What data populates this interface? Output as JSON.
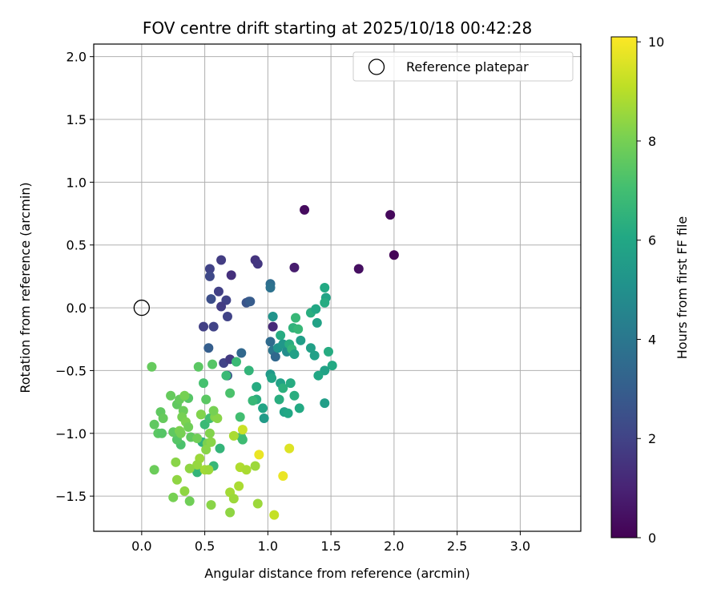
{
  "chart_data": {
    "type": "scatter",
    "title": "FOV centre drift starting at 2025/10/18 00:42:28",
    "xlabel": "Angular distance from reference (arcmin)",
    "ylabel": "Rotation from reference (arcmin)",
    "xlim": [
      -0.38,
      3.48
    ],
    "ylim": [
      -1.78,
      2.1
    ],
    "xticks": [
      0.0,
      0.5,
      1.0,
      1.5,
      2.0,
      2.5,
      3.0
    ],
    "xtick_labels": [
      "0.0",
      "0.5",
      "1.0",
      "1.5",
      "2.0",
      "2.5",
      "3.0"
    ],
    "yticks": [
      -1.5,
      -1.0,
      -0.5,
      0.0,
      0.5,
      1.0,
      1.5,
      2.0
    ],
    "ytick_labels": [
      "−1.5",
      "−1.0",
      "−0.5",
      "0.0",
      "0.5",
      "1.0",
      "1.5",
      "2.0"
    ],
    "grid": true,
    "legend": {
      "position": "top-right",
      "label": "Reference platepar"
    },
    "reference_point": {
      "x": 0.0,
      "y": 0.0
    },
    "colorbar": {
      "label": "Hours from first FF file",
      "range": [
        0,
        10.1
      ],
      "ticks": [
        0,
        2,
        4,
        6,
        8,
        10
      ],
      "tick_labels": [
        "0",
        "2",
        "4",
        "6",
        "8",
        "10"
      ],
      "colormap": "viridis"
    },
    "points": [
      [
        1.29,
        0.78,
        0.3
      ],
      [
        1.97,
        0.74,
        0.2
      ],
      [
        2.0,
        0.42,
        0.1
      ],
      [
        1.72,
        0.31,
        0.4
      ],
      [
        1.21,
        0.32,
        0.8
      ],
      [
        0.9,
        0.38,
        1.5
      ],
      [
        0.92,
        0.35,
        1.6
      ],
      [
        0.63,
        0.38,
        1.8
      ],
      [
        0.54,
        0.31,
        2.0
      ],
      [
        0.54,
        0.25,
        2.2
      ],
      [
        0.71,
        0.26,
        1.4
      ],
      [
        0.61,
        0.13,
        1.9
      ],
      [
        0.55,
        0.07,
        2.4
      ],
      [
        0.67,
        0.06,
        2.0
      ],
      [
        0.83,
        0.04,
        2.6
      ],
      [
        0.85,
        0.05,
        2.7
      ],
      [
        0.86,
        0.05,
        2.9
      ],
      [
        0.63,
        0.01,
        1.8
      ],
      [
        0.68,
        -0.07,
        2.0
      ],
      [
        0.49,
        -0.15,
        1.9
      ],
      [
        0.57,
        -0.15,
        2.0
      ],
      [
        0.53,
        -0.32,
        3.0
      ],
      [
        0.79,
        -0.36,
        3.4
      ],
      [
        0.65,
        -0.44,
        2.0
      ],
      [
        0.7,
        -0.41,
        1.7
      ],
      [
        0.68,
        -0.54,
        2.6
      ],
      [
        1.02,
        0.19,
        3.6
      ],
      [
        1.02,
        0.16,
        3.8
      ],
      [
        1.04,
        -0.07,
        5.2
      ],
      [
        1.04,
        -0.15,
        1.2
      ],
      [
        1.02,
        -0.27,
        3.5
      ],
      [
        1.04,
        -0.34,
        3.9
      ],
      [
        1.06,
        -0.39,
        3.4
      ],
      [
        1.08,
        -0.32,
        5.2
      ],
      [
        1.1,
        -0.22,
        6.2
      ],
      [
        1.12,
        -0.29,
        5.3
      ],
      [
        1.15,
        -0.35,
        4.9
      ],
      [
        1.17,
        -0.29,
        6.3
      ],
      [
        1.19,
        -0.33,
        6.6
      ],
      [
        1.21,
        -0.37,
        5.7
      ],
      [
        1.22,
        -0.08,
        6.7
      ],
      [
        1.2,
        -0.16,
        6.5
      ],
      [
        1.24,
        -0.17,
        6.7
      ],
      [
        1.26,
        -0.26,
        5.6
      ],
      [
        1.34,
        -0.32,
        5.7
      ],
      [
        1.37,
        -0.38,
        5.7
      ],
      [
        1.34,
        -0.04,
        6.3
      ],
      [
        1.38,
        -0.01,
        6.0
      ],
      [
        1.39,
        -0.12,
        5.8
      ],
      [
        1.45,
        0.16,
        6.1
      ],
      [
        1.46,
        0.08,
        5.9
      ],
      [
        1.45,
        0.04,
        6.2
      ],
      [
        1.48,
        -0.35,
        6.2
      ],
      [
        1.51,
        -0.46,
        6.1
      ],
      [
        1.45,
        -0.5,
        5.8
      ],
      [
        1.4,
        -0.54,
        6.0
      ],
      [
        1.45,
        -0.76,
        5.6
      ],
      [
        1.25,
        -0.8,
        6.1
      ],
      [
        1.13,
        -0.83,
        5.8
      ],
      [
        1.16,
        -0.84,
        6.0
      ],
      [
        1.1,
        -0.6,
        5.8
      ],
      [
        1.12,
        -0.64,
        6.4
      ],
      [
        1.18,
        -0.6,
        6.2
      ],
      [
        1.21,
        -0.7,
        6.3
      ],
      [
        1.09,
        -0.73,
        6.3
      ],
      [
        1.02,
        -0.53,
        5.4
      ],
      [
        1.03,
        -0.56,
        5.9
      ],
      [
        0.96,
        -0.8,
        5.9
      ],
      [
        0.97,
        -0.88,
        5.5
      ],
      [
        0.91,
        -0.73,
        6.3
      ],
      [
        0.88,
        -0.74,
        6.7
      ],
      [
        0.91,
        -0.63,
        6.2
      ],
      [
        0.85,
        -0.5,
        6.6
      ],
      [
        0.75,
        -0.43,
        6.8
      ],
      [
        0.67,
        -0.54,
        6.8
      ],
      [
        0.7,
        -0.68,
        7.2
      ],
      [
        0.78,
        -0.87,
        7.0
      ],
      [
        0.79,
        -1.03,
        7.3
      ],
      [
        0.8,
        -1.05,
        6.9
      ],
      [
        0.62,
        -1.12,
        6.6
      ],
      [
        0.57,
        -1.26,
        6.7
      ],
      [
        0.44,
        -1.31,
        6.6
      ],
      [
        0.48,
        -1.07,
        6.5
      ],
      [
        0.5,
        -0.93,
        6.8
      ],
      [
        0.54,
        -0.88,
        7.0
      ],
      [
        0.47,
        -0.85,
        7.1
      ],
      [
        0.49,
        -0.6,
        7.1
      ],
      [
        0.56,
        -0.45,
        7.4
      ],
      [
        0.45,
        -0.47,
        7.5
      ],
      [
        0.51,
        -0.73,
        7.5
      ],
      [
        0.37,
        -0.72,
        7.4
      ],
      [
        0.39,
        -1.03,
        7.6
      ],
      [
        0.31,
        -1.09,
        7.2
      ],
      [
        0.28,
        -1.05,
        7.4
      ],
      [
        0.25,
        -0.99,
        7.6
      ],
      [
        0.1,
        -0.93,
        7.6
      ],
      [
        0.13,
        -1.0,
        7.5
      ],
      [
        0.16,
        -1.0,
        7.4
      ],
      [
        0.15,
        -0.83,
        7.6
      ],
      [
        0.17,
        -0.88,
        7.7
      ],
      [
        0.23,
        -0.7,
        7.7
      ],
      [
        0.28,
        -0.77,
        7.6
      ],
      [
        0.3,
        -0.73,
        7.7
      ],
      [
        0.34,
        -0.7,
        8.0
      ],
      [
        0.33,
        -0.82,
        7.8
      ],
      [
        0.32,
        -0.87,
        8.0
      ],
      [
        0.35,
        -0.91,
        8.1
      ],
      [
        0.37,
        -0.95,
        7.9
      ],
      [
        0.3,
        -0.98,
        8.1
      ],
      [
        0.31,
        -1.0,
        8.0
      ],
      [
        0.44,
        -1.04,
        7.9
      ],
      [
        0.52,
        -1.08,
        8.1
      ],
      [
        0.54,
        -1.0,
        8.2
      ],
      [
        0.55,
        -1.07,
        8.3
      ],
      [
        0.51,
        -1.13,
        8.3
      ],
      [
        0.58,
        -0.87,
        8.2
      ],
      [
        0.6,
        -0.88,
        8.3
      ],
      [
        0.57,
        -0.82,
        8.0
      ],
      [
        0.46,
        -1.2,
        8.6
      ],
      [
        0.44,
        -1.25,
        8.5
      ],
      [
        0.38,
        -1.28,
        8.4
      ],
      [
        0.34,
        -1.46,
        8.4
      ],
      [
        0.28,
        -1.37,
        8.4
      ],
      [
        0.25,
        -1.51,
        8.0
      ],
      [
        0.38,
        -1.54,
        7.9
      ],
      [
        0.27,
        -1.23,
        8.3
      ],
      [
        0.1,
        -1.29,
        7.8
      ],
      [
        0.08,
        -0.47,
        7.7
      ],
      [
        0.47,
        -0.85,
        8.2
      ],
      [
        0.5,
        -1.29,
        8.7
      ],
      [
        0.53,
        -1.29,
        8.6
      ],
      [
        0.55,
        -1.57,
        8.3
      ],
      [
        0.7,
        -1.63,
        8.4
      ],
      [
        0.7,
        -1.47,
        8.7
      ],
      [
        0.73,
        -1.52,
        8.6
      ],
      [
        0.77,
        -1.42,
        8.8
      ],
      [
        0.78,
        -1.27,
        8.9
      ],
      [
        0.83,
        -1.29,
        8.8
      ],
      [
        0.9,
        -1.26,
        8.6
      ],
      [
        0.92,
        -1.56,
        8.6
      ],
      [
        0.73,
        -1.02,
        8.8
      ],
      [
        0.8,
        -0.97,
        9.3
      ],
      [
        0.93,
        -1.17,
        9.8
      ],
      [
        1.05,
        -1.65,
        9.2
      ],
      [
        1.12,
        -1.34,
        9.8
      ],
      [
        1.17,
        -1.12,
        9.6
      ]
    ]
  }
}
